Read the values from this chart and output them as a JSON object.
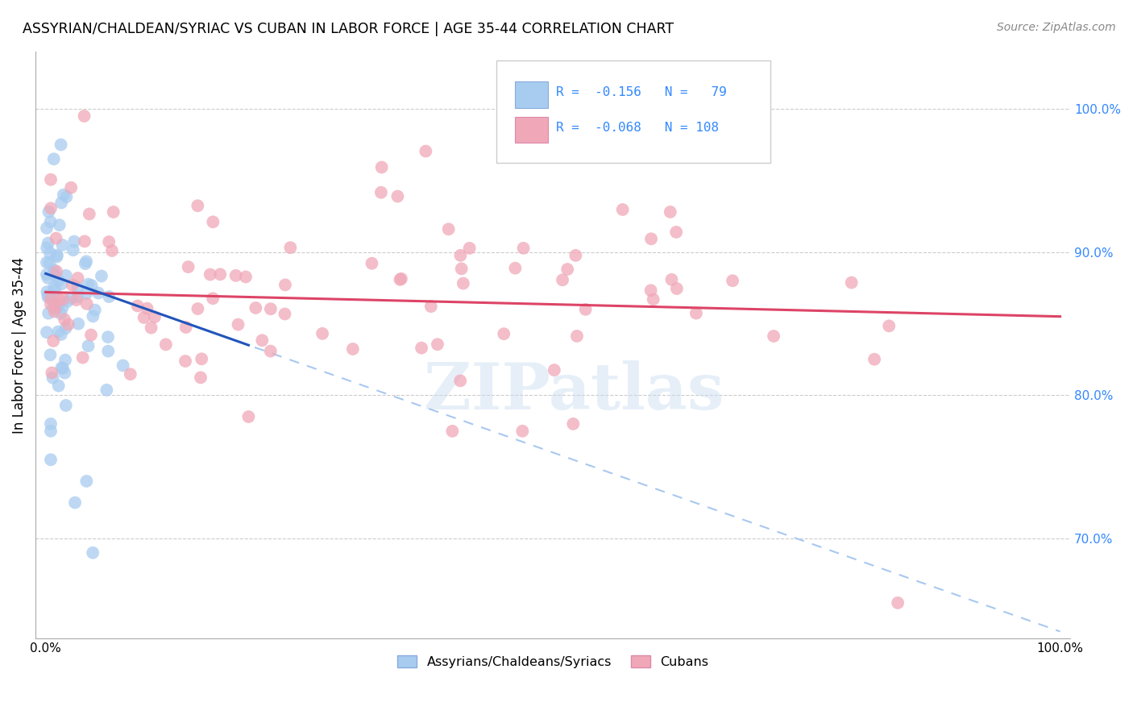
{
  "title": "ASSYRIAN/CHALDEAN/SYRIAC VS CUBAN IN LABOR FORCE | AGE 35-44 CORRELATION CHART",
  "source": "Source: ZipAtlas.com",
  "ylabel": "In Labor Force | Age 35-44",
  "blue_R": -0.156,
  "blue_N": 79,
  "pink_R": -0.068,
  "pink_N": 108,
  "blue_color": "#A8CCF0",
  "pink_color": "#F0A8B8",
  "blue_line_color": "#2255BB",
  "pink_line_color": "#DD4466",
  "blue_dashed_color": "#A8C8F0",
  "watermark": "ZIPatlas",
  "xlim": [
    -1,
    101
  ],
  "ylim": [
    63,
    104
  ],
  "right_yticks": [
    100,
    90,
    80,
    70
  ],
  "right_yticklabels": [
    "100.0%",
    "90.0%",
    "80.0%",
    "70.0%"
  ],
  "blue_line_x0": 0.0,
  "blue_line_y0": 88.5,
  "blue_line_x1": 20.0,
  "blue_line_y1": 83.5,
  "pink_line_x0": 0.0,
  "pink_line_y0": 87.2,
  "pink_line_x1": 100.0,
  "pink_line_y1": 85.5,
  "blue_dash_x0": 0.0,
  "blue_dash_y0": 88.5,
  "blue_dash_x1": 100.0,
  "blue_dash_y1": 63.5
}
